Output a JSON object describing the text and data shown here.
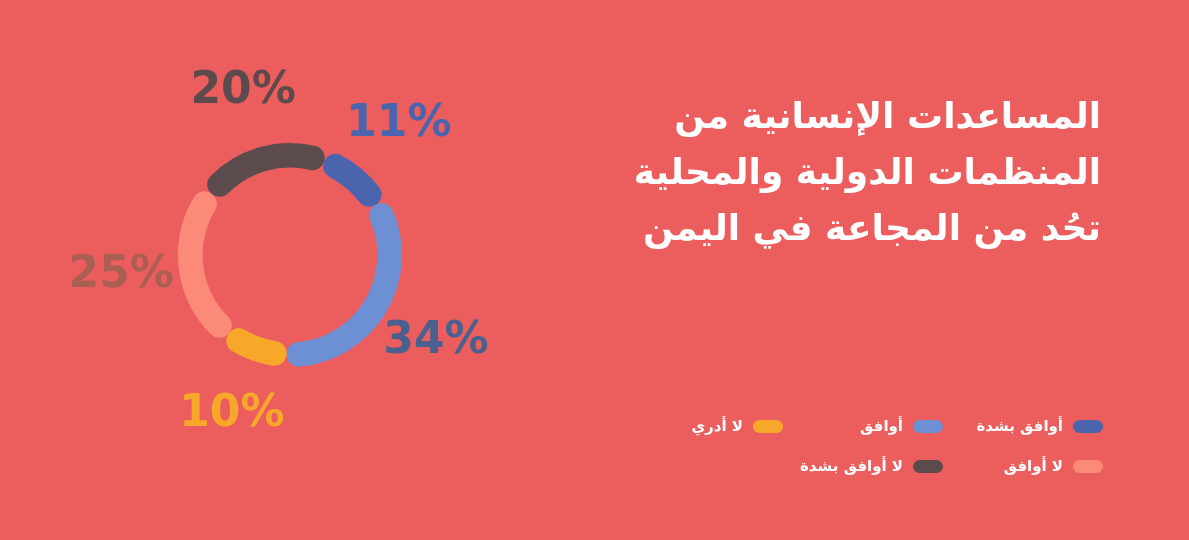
{
  "chart_data": {
    "type": "donut",
    "title": "المساعدات الإنسانية من المنظمات الدولية والمحلية تحُد من المجاعة في اليمن",
    "categories": [
      "أوافق بشدة",
      "أوافق",
      "لا أدري",
      "لا أوافق",
      "لا أوافق بشدة"
    ],
    "values": [
      11,
      34,
      10,
      25,
      20
    ],
    "value_labels": [
      "11%",
      "34%",
      "10%",
      "25%",
      "20%"
    ],
    "colors": [
      "#4a64ad",
      "#6d8fd3",
      "#f7a829",
      "#fb8a78",
      "#5b4b4d"
    ],
    "legend": "bottom right"
  }
}
